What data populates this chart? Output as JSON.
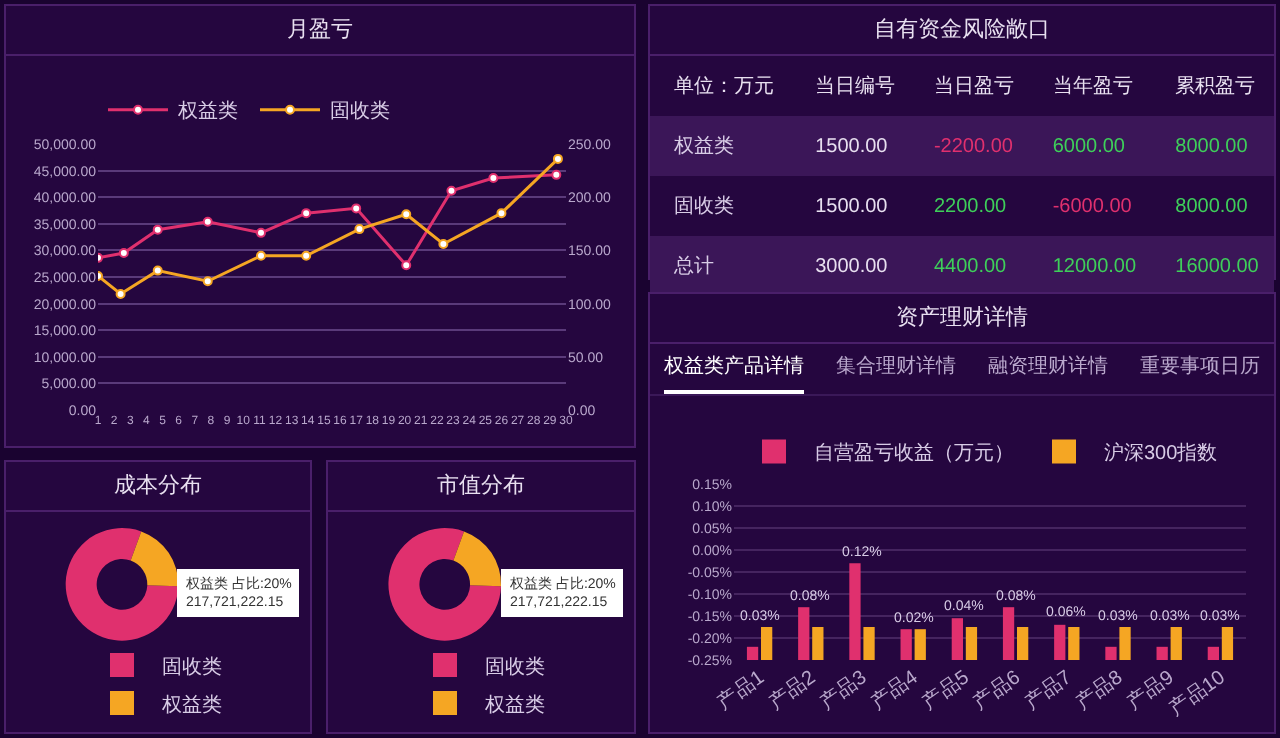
{
  "chart_data": [
    {
      "type": "line",
      "title": "月盈亏",
      "legend": "top left",
      "marker": "circle",
      "line_style": "solid",
      "grid": "y",
      "xlim": [
        1,
        30
      ],
      "xticks": [
        1,
        2,
        3,
        4,
        5,
        6,
        7,
        8,
        9,
        10,
        11,
        12,
        13,
        14,
        15,
        16,
        17,
        18,
        19,
        20,
        21,
        22,
        23,
        24,
        25,
        26,
        27,
        28,
        29,
        30
      ],
      "ylim": [
        0,
        50000
      ],
      "yticks": [
        {
          "value": 0,
          "label": "0.00"
        },
        {
          "value": 5000,
          "label": "5,000.00"
        },
        {
          "value": 10000,
          "label": "10,000.00"
        },
        {
          "value": 15000,
          "label": "15,000.00"
        },
        {
          "value": 20000,
          "label": "20,000.00"
        },
        {
          "value": 25000,
          "label": "25,000.00"
        },
        {
          "value": 30000,
          "label": "30,000.00"
        },
        {
          "value": 35000,
          "label": "35,000.00"
        },
        {
          "value": 40000,
          "label": "40,000.00"
        },
        {
          "value": 45000,
          "label": "45,000.00"
        },
        {
          "value": 50000,
          "label": "50,000.00"
        }
      ],
      "y2lim": [
        0,
        250
      ],
      "y2ticks": [
        {
          "value": 0,
          "label": "0.00"
        },
        {
          "value": 50,
          "label": "50.00"
        },
        {
          "value": 100,
          "label": "100.00"
        },
        {
          "value": 150,
          "label": "150.00"
        },
        {
          "value": 200,
          "label": "200.00"
        },
        {
          "value": 250,
          "label": "250.00"
        }
      ],
      "series": [
        {
          "name": "权益类",
          "color": "#e0306e",
          "x": [
            1,
            2.6,
            4.7,
            7.8,
            11.1,
            13.9,
            17,
            20.1,
            22.9,
            25.5,
            29.4
          ],
          "values": [
            28600,
            29500,
            33900,
            35400,
            33300,
            37000,
            37900,
            27200,
            41200,
            43600,
            44200
          ]
        },
        {
          "name": "固收类",
          "color": "#f5a623",
          "axis": "y2",
          "x": [
            1,
            2.4,
            4.7,
            7.8,
            11.1,
            13.9,
            17.2,
            20.1,
            22.4,
            26,
            29.5
          ],
          "values": [
            126,
            109,
            131,
            121,
            145,
            145,
            170,
            184,
            156,
            185,
            236
          ]
        }
      ]
    },
    {
      "type": "other",
      "title": "自有资金风险敞口",
      "categories": [
        "单位：万元",
        "当日编号",
        "当日盈亏",
        "当年盈亏",
        "累积盈亏"
      ],
      "y_categories": [
        "权益类",
        "固收类",
        "总计"
      ],
      "cell_labels": [
        [
          "1500.00",
          "-2200.00",
          "6000.00",
          "8000.00"
        ],
        [
          "1500.00",
          "2200.00",
          "-6000.00",
          "8000.00"
        ],
        [
          "3000.00",
          "4400.00",
          "12000.00",
          "16000.00"
        ]
      ]
    },
    {
      "type": "bar",
      "title": "资产理财详情",
      "legend": "top left",
      "grid": "y",
      "categories": [
        "产品1",
        "产品2",
        "产品3",
        "产品4",
        "产品5",
        "产品6",
        "产品7",
        "产品8",
        "产品9",
        "产品10"
      ],
      "ylim": [
        -0.25,
        0.15
      ],
      "yticks": [
        {
          "value": -0.25,
          "label": "-0.25%"
        },
        {
          "value": -0.2,
          "label": "-0.20%"
        },
        {
          "value": -0.15,
          "label": "-0.15%"
        },
        {
          "value": -0.1,
          "label": "-0.10%"
        },
        {
          "value": -0.05,
          "label": "-0.05%"
        },
        {
          "value": 0,
          "label": "0.00%"
        },
        {
          "value": 0.05,
          "label": "0.05%"
        },
        {
          "value": 0.1,
          "label": "0.10%"
        },
        {
          "value": 0.15,
          "label": "0.15%"
        }
      ],
      "series": [
        {
          "name": "自营盈亏收益（万元）",
          "color": "#e0306e",
          "base": [
            -0.25,
            -0.25,
            -0.25,
            -0.25,
            -0.25,
            -0.25,
            -0.25,
            -0.25,
            -0.25,
            -0.25
          ],
          "values": [
            0.03,
            0.12,
            0.22,
            0.07,
            0.095,
            0.12,
            0.08,
            0.03,
            0.03,
            0.03
          ]
        },
        {
          "name": "沪深300指数",
          "color": "#f5a623",
          "base": [
            -0.25,
            -0.25,
            -0.25,
            -0.25,
            -0.25,
            -0.25,
            -0.25,
            -0.25,
            -0.25,
            -0.25
          ],
          "values": [
            0.075,
            0.075,
            0.075,
            0.07,
            0.075,
            0.075,
            0.075,
            0.075,
            0.075,
            0.075
          ]
        }
      ],
      "annotations": [
        "权益类产品详情",
        "集合理财详情",
        "融资理财详情",
        "重要事项日历",
        {
          "text": "0.03%",
          "x": "产品1",
          "y": -0.175
        },
        {
          "text": "0.08%",
          "x": "产品2",
          "y": -0.13
        },
        {
          "text": "0.12%",
          "x": "产品3",
          "y": -0.03
        },
        {
          "text": "0.02%",
          "x": "产品4",
          "y": -0.18
        },
        {
          "text": "0.04%",
          "x": "产品5",
          "y": -0.155
        },
        {
          "text": "0.08%",
          "x": "产品6",
          "y": -0.13
        },
        {
          "text": "0.06%",
          "x": "产品7",
          "y": -0.17
        },
        {
          "text": "0.03%",
          "x": "产品8",
          "y": -0.175
        },
        {
          "text": "0.03%",
          "x": "产品9",
          "y": -0.175
        },
        {
          "text": "0.03%",
          "x": "产品10",
          "y": -0.175
        }
      ]
    },
    {
      "type": "donut",
      "title": "成本分布",
      "legend": "bottom",
      "categories": [
        "固收类",
        "权益类"
      ],
      "values": [
        80,
        20
      ],
      "colors": [
        "#e0306e",
        "#f5a623"
      ],
      "annotations": [
        "权益类 占比:20%",
        "217,721,222.15"
      ]
    },
    {
      "type": "donut",
      "title": "市值分布",
      "legend": "bottom",
      "categories": [
        "固收类",
        "权益类"
      ],
      "values": [
        80,
        20
      ],
      "colors": [
        "#e0306e",
        "#f5a623"
      ],
      "annotations": [
        "权益类 占比:20%",
        "217,721,222.15"
      ]
    }
  ]
}
